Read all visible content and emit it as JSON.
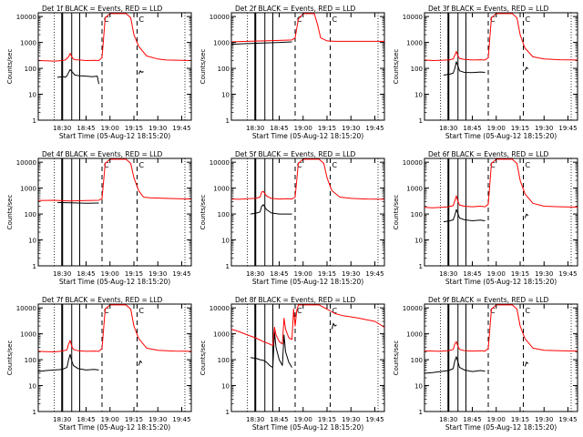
{
  "figure": {
    "ylabel": "Counts/sec",
    "xlabel": "Start Time (05-Aug-12 18:15:20)",
    "x_tick_labels": [
      "18:30",
      "18:45",
      "19:00",
      "19:15",
      "19:30",
      "19:45"
    ],
    "y_tick_labels": [
      "1",
      "10",
      "100",
      "1000",
      "10000"
    ],
    "colors": {
      "events": "#000000",
      "lld": "#ff0000"
    }
  },
  "chart_data": [
    {
      "type": "line",
      "title": "Det 1f BLACK = Events, RED = LLD",
      "xlabel": "Start Time (05-Aug-12 18:15:20)",
      "ylabel": "Counts/sec",
      "x_unit": "minutes since 18:15:20",
      "xlim": [
        0,
        96
      ],
      "ylim": [
        1,
        14000
      ],
      "yscale": "log",
      "vlines": {
        "dotted": [
          10,
          92
        ],
        "thick": [
          15
        ],
        "thin": [
          21,
          26
        ],
        "dashed": [
          40,
          62
        ]
      },
      "flags": [
        "C",
        "C"
      ],
      "series": [
        {
          "name": "Events",
          "color": "#000000",
          "x": [
            12,
            16,
            17,
            18,
            20,
            23,
            26,
            30,
            34,
            37,
            38
          ],
          "y": [
            45,
            48,
            45,
            52,
            90,
            55,
            52,
            50,
            48,
            50,
            25
          ]
        },
        {
          "name": "LLD",
          "color": "#ff0000",
          "x": [
            0,
            5,
            10,
            15,
            17,
            19,
            20,
            21,
            22,
            23,
            26,
            30,
            35,
            38,
            40,
            42,
            45,
            55,
            58,
            60,
            63,
            68,
            75,
            80,
            96
          ],
          "y": [
            200,
            195,
            190,
            200,
            210,
            280,
            380,
            280,
            230,
            215,
            210,
            200,
            205,
            200,
            260,
            9000,
            13000,
            13000,
            9000,
            2000,
            700,
            300,
            230,
            210,
            200
          ]
        },
        {
          "name": "Events",
          "color": "#000000",
          "x": [
            63,
            64,
            65,
            66
          ],
          "y": [
            60,
            80,
            70,
            75
          ]
        }
      ]
    },
    {
      "type": "line",
      "title": "Det 2f BLACK = Events, RED = LLD",
      "xlabel": "Start Time (05-Aug-12 18:15:20)",
      "ylabel": "Counts/sec",
      "x_unit": "minutes since 18:15:20",
      "xlim": [
        0,
        96
      ],
      "ylim": [
        1,
        14000
      ],
      "yscale": "log",
      "vlines": {
        "dotted": [
          10,
          92
        ],
        "thick": [
          15
        ],
        "thin": [
          21,
          26
        ],
        "dashed": [
          40,
          62
        ]
      },
      "flags": [
        "C",
        "C"
      ],
      "series": [
        {
          "name": "Events",
          "color": "#000000",
          "x": [
            0,
            10,
            20,
            30,
            38
          ],
          "y": [
            850,
            900,
            950,
            1000,
            1050
          ]
        },
        {
          "name": "LLD",
          "color": "#ff0000",
          "x": [
            0,
            10,
            20,
            30,
            38,
            40,
            42,
            45,
            52,
            54,
            56,
            60,
            65,
            70,
            80,
            96
          ],
          "y": [
            1050,
            1100,
            1150,
            1200,
            1250,
            1500,
            8000,
            13000,
            13000,
            5000,
            1500,
            1150,
            1100,
            1100,
            1100,
            1100
          ]
        }
      ]
    },
    {
      "type": "line",
      "title": "Det 3f BLACK = Events, RED = LLD",
      "xlabel": "Start Time (05-Aug-12 18:15:20)",
      "ylabel": "Counts/sec",
      "x_unit": "minutes since 18:15:20",
      "xlim": [
        0,
        96
      ],
      "ylim": [
        1,
        14000
      ],
      "yscale": "log",
      "vlines": {
        "dotted": [
          10,
          92
        ],
        "thick": [
          15
        ],
        "thin": [
          21,
          26
        ],
        "dashed": [
          40,
          62
        ]
      },
      "flags": [
        "C",
        "C"
      ],
      "series": [
        {
          "name": "Events",
          "color": "#000000",
          "x": [
            12,
            16,
            18,
            19,
            20,
            21,
            22,
            25,
            30,
            35,
            38
          ],
          "y": [
            55,
            60,
            65,
            100,
            180,
            120,
            80,
            70,
            68,
            72,
            70
          ]
        },
        {
          "name": "LLD",
          "color": "#ff0000",
          "x": [
            0,
            5,
            10,
            15,
            18,
            19,
            20,
            21,
            22,
            25,
            30,
            35,
            38,
            40,
            42,
            45,
            55,
            58,
            60,
            63,
            68,
            75,
            85,
            96
          ],
          "y": [
            210,
            200,
            205,
            210,
            230,
            320,
            450,
            300,
            240,
            220,
            210,
            215,
            210,
            260,
            9000,
            13000,
            13000,
            9000,
            2000,
            600,
            280,
            230,
            215,
            210
          ]
        },
        {
          "name": "Events",
          "color": "#000000",
          "x": [
            63,
            64,
            65
          ],
          "y": [
            80,
            110,
            95
          ]
        }
      ]
    },
    {
      "type": "line",
      "title": "Det 4f BLACK = Events, RED = LLD",
      "xlabel": "Start Time (05-Aug-12 18:15:20)",
      "ylabel": "Counts/sec",
      "x_unit": "minutes since 18:15:20",
      "xlim": [
        0,
        96
      ],
      "ylim": [
        1,
        14000
      ],
      "yscale": "log",
      "vlines": {
        "dotted": [
          10,
          92
        ],
        "thick": [
          15
        ],
        "thin": [
          21,
          26
        ],
        "dashed": [
          40,
          62
        ]
      },
      "flags": [
        "C",
        "C"
      ],
      "series": [
        {
          "name": "Events",
          "color": "#000000",
          "x": [
            12,
            20,
            30,
            38
          ],
          "y": [
            280,
            270,
            260,
            265
          ]
        },
        {
          "name": "LLD",
          "color": "#ff0000",
          "x": [
            0,
            10,
            20,
            30,
            38,
            40,
            42,
            45,
            55,
            58,
            60,
            63,
            66,
            70,
            80,
            96
          ],
          "y": [
            330,
            340,
            320,
            330,
            340,
            400,
            9000,
            13000,
            13000,
            9000,
            2500,
            800,
            450,
            420,
            400,
            380
          ]
        }
      ]
    },
    {
      "type": "line",
      "title": "Det 5f BLACK = Events, RED = LLD",
      "xlabel": "Start Time (05-Aug-12 18:15:20)",
      "ylabel": "Counts/sec",
      "x_unit": "minutes since 18:15:20",
      "xlim": [
        0,
        96
      ],
      "ylim": [
        1,
        14000
      ],
      "yscale": "log",
      "vlines": {
        "dotted": [
          10,
          92
        ],
        "thick": [
          15
        ],
        "thin": [
          21,
          26
        ],
        "dashed": [
          40,
          62
        ]
      },
      "flags": [
        "C",
        "C"
      ],
      "series": [
        {
          "name": "Events",
          "color": "#000000",
          "x": [
            12,
            16,
            18,
            19,
            20,
            22,
            25,
            30,
            35,
            38
          ],
          "y": [
            100,
            110,
            120,
            200,
            230,
            150,
            110,
            100,
            100,
            100
          ]
        },
        {
          "name": "LLD",
          "color": "#ff0000",
          "x": [
            0,
            5,
            10,
            15,
            18,
            19,
            20,
            22,
            25,
            30,
            35,
            38,
            40,
            42,
            45,
            55,
            58,
            60,
            63,
            68,
            75,
            85,
            96
          ],
          "y": [
            380,
            370,
            390,
            400,
            450,
            700,
            750,
            500,
            400,
            380,
            390,
            380,
            450,
            9000,
            13000,
            13000,
            9000,
            2500,
            800,
            450,
            400,
            380,
            370
          ]
        }
      ]
    },
    {
      "type": "line",
      "title": "Det 6f BLACK = Events, RED = LLD",
      "xlabel": "Start Time (05-Aug-12 18:15:20)",
      "ylabel": "Counts/sec",
      "x_unit": "minutes since 18:15:20",
      "xlim": [
        0,
        96
      ],
      "ylim": [
        1,
        14000
      ],
      "yscale": "log",
      "vlines": {
        "dotted": [
          10,
          92
        ],
        "thick": [
          15
        ],
        "thin": [
          21,
          26
        ],
        "dashed": [
          40,
          62
        ]
      },
      "flags": [
        "C",
        "C"
      ],
      "series": [
        {
          "name": "Events",
          "color": "#000000",
          "x": [
            12,
            16,
            18,
            19,
            20,
            21,
            22,
            25,
            30,
            35,
            38
          ],
          "y": [
            50,
            55,
            60,
            90,
            150,
            100,
            70,
            60,
            55,
            58,
            55
          ]
        },
        {
          "name": "LLD",
          "color": "#ff0000",
          "x": [
            0,
            5,
            10,
            15,
            18,
            19,
            20,
            21,
            22,
            25,
            30,
            35,
            38,
            40,
            42,
            45,
            55,
            58,
            60,
            63,
            68,
            75,
            85,
            96
          ],
          "y": [
            180,
            175,
            180,
            190,
            210,
            320,
            500,
            300,
            220,
            200,
            190,
            200,
            190,
            240,
            9000,
            13000,
            13000,
            9000,
            2000,
            600,
            260,
            200,
            190,
            185
          ]
        },
        {
          "name": "Events",
          "color": "#000000",
          "x": [
            63,
            64,
            65
          ],
          "y": [
            70,
            100,
            85
          ]
        }
      ]
    },
    {
      "type": "line",
      "title": "Det 7f BLACK = Events, RED = LLD",
      "xlabel": "Start Time (05-Aug-12 18:15:20)",
      "ylabel": "Counts/sec",
      "x_unit": "minutes since 18:15:20",
      "xlim": [
        0,
        96
      ],
      "ylim": [
        1,
        14000
      ],
      "yscale": "log",
      "vlines": {
        "dotted": [
          10,
          92
        ],
        "thick": [
          15
        ],
        "thin": [
          21,
          26
        ],
        "dashed": [
          40,
          62
        ]
      },
      "flags": [
        "C",
        "C"
      ],
      "series": [
        {
          "name": "Events",
          "color": "#000000",
          "x": [
            0,
            5,
            10,
            15,
            18,
            19,
            20,
            21,
            22,
            25,
            30,
            35,
            38
          ],
          "y": [
            35,
            38,
            40,
            42,
            50,
            100,
            160,
            90,
            60,
            45,
            40,
            42,
            40
          ]
        },
        {
          "name": "LLD",
          "color": "#ff0000",
          "x": [
            0,
            5,
            10,
            15,
            18,
            19,
            20,
            21,
            22,
            25,
            30,
            35,
            38,
            40,
            42,
            45,
            55,
            58,
            60,
            63,
            68,
            75,
            85,
            96
          ],
          "y": [
            210,
            205,
            200,
            215,
            240,
            400,
            550,
            330,
            250,
            220,
            210,
            215,
            210,
            270,
            9000,
            13000,
            13000,
            9000,
            2000,
            650,
            280,
            230,
            215,
            210
          ]
        },
        {
          "name": "Events",
          "color": "#000000",
          "x": [
            63,
            64,
            65
          ],
          "y": [
            60,
            90,
            75
          ]
        }
      ]
    },
    {
      "type": "line",
      "title": "Det 8f BLACK = Events, RED = LLD",
      "xlabel": "Start Time (05-Aug-12 18:15:20)",
      "ylabel": "Counts/sec",
      "x_unit": "minutes since 18:15:20",
      "xlim": [
        0,
        96
      ],
      "ylim": [
        1,
        14000
      ],
      "yscale": "log",
      "vlines": {
        "dotted": [
          10,
          92
        ],
        "thick": [
          15
        ],
        "thin": [
          21,
          26
        ],
        "dashed": [
          40,
          62
        ]
      },
      "flags": [
        "C",
        "C"
      ],
      "series": [
        {
          "name": "Events",
          "color": "#000000",
          "x": [
            12,
            16,
            18,
            20,
            22,
            24,
            26,
            27,
            28,
            30,
            32,
            33,
            34,
            36,
            38
          ],
          "y": [
            120,
            110,
            100,
            95,
            80,
            60,
            50,
            1200,
            300,
            100,
            60,
            900,
            200,
            80,
            50
          ]
        },
        {
          "name": "LLD",
          "color": "#ff0000",
          "x": [
            0,
            5,
            10,
            15,
            20,
            24,
            26,
            27,
            28,
            30,
            32,
            33,
            34,
            36,
            38,
            39,
            40,
            41,
            42,
            45,
            55,
            60,
            65,
            70,
            80,
            90,
            96
          ],
          "y": [
            1500,
            1200,
            900,
            700,
            500,
            400,
            350,
            1800,
            900,
            500,
            400,
            4000,
            1500,
            700,
            600,
            9000,
            2000,
            8000,
            13000,
            13000,
            13000,
            9000,
            6000,
            5000,
            4000,
            3000,
            1800
          ]
        },
        {
          "name": "Events",
          "color": "#000000",
          "x": [
            63,
            64,
            65,
            66
          ],
          "y": [
            1500,
            2500,
            2000,
            2200
          ]
        }
      ]
    },
    {
      "type": "line",
      "title": "Det 9f BLACK = Events, RED = LLD",
      "xlabel": "Start Time (05-Aug-12 18:15:20)",
      "ylabel": "Counts/sec",
      "x_unit": "minutes since 18:15:20",
      "xlim": [
        0,
        96
      ],
      "ylim": [
        1,
        14000
      ],
      "yscale": "log",
      "vlines": {
        "dotted": [
          10,
          92
        ],
        "thick": [
          15
        ],
        "thin": [
          21,
          26
        ],
        "dashed": [
          40,
          62
        ]
      },
      "flags": [
        "C",
        "C"
      ],
      "series": [
        {
          "name": "Events",
          "color": "#000000",
          "x": [
            0,
            5,
            10,
            15,
            18,
            19,
            20,
            21,
            22,
            25,
            30,
            35,
            38
          ],
          "y": [
            30,
            32,
            35,
            38,
            45,
            90,
            130,
            80,
            50,
            40,
            35,
            38,
            36
          ]
        },
        {
          "name": "LLD",
          "color": "#ff0000",
          "x": [
            0,
            5,
            10,
            15,
            18,
            19,
            20,
            21,
            22,
            25,
            30,
            35,
            38,
            40,
            42,
            45,
            55,
            58,
            60,
            63,
            68,
            75,
            85,
            96
          ],
          "y": [
            220,
            215,
            210,
            225,
            250,
            400,
            500,
            320,
            250,
            225,
            215,
            220,
            215,
            270,
            9000,
            13000,
            13000,
            9000,
            2000,
            650,
            280,
            230,
            220,
            215
          ]
        },
        {
          "name": "Events",
          "color": "#000000",
          "x": [
            63,
            64,
            65
          ],
          "y": [
            55,
            80,
            70
          ]
        }
      ]
    }
  ]
}
